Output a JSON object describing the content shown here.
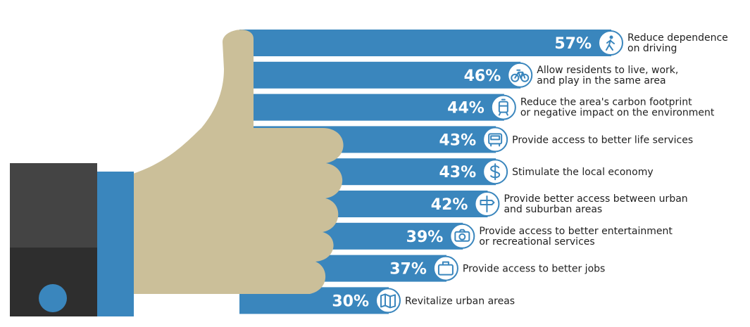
{
  "colors": {
    "bar": "#3a86bd",
    "hand": "#cbbf99",
    "sleeve_top": "#444444",
    "sleeve_bottom": "#2e2e2e",
    "cuff": "#3a86bd",
    "button": "#3a86bd",
    "icon_circle": "#ffffff",
    "icon_stroke": "#3a86bd",
    "label_text": "#1f1f1f"
  },
  "chart_data": {
    "type": "bar",
    "orientation": "horizontal",
    "value_suffix": "%",
    "categories": [
      [
        "Reduce dependence",
        "on driving"
      ],
      [
        "Allow residents to live, work,",
        "and play in the same area"
      ],
      [
        "Reduce the area's carbon footprint",
        "or negative impact on the environment"
      ],
      [
        "Provide access to better life services"
      ],
      [
        "Stimulate the local economy"
      ],
      [
        "Provide better access between urban",
        "and suburban areas"
      ],
      [
        "Provide access to better entertainment",
        "or recreational services"
      ],
      [
        "Provide access to better jobs"
      ],
      [
        "Revitalize urban areas"
      ]
    ],
    "values": [
      57,
      46,
      44,
      43,
      43,
      42,
      39,
      37,
      30
    ],
    "value_labels": [
      "57%",
      "46%",
      "44%",
      "43%",
      "43%",
      "42%",
      "39%",
      "37%",
      "30%"
    ],
    "icons": [
      "pedestrian-icon",
      "bicycle-icon",
      "tram-icon",
      "bus-icon",
      "dollar-icon",
      "road-sign-icon",
      "camera-icon",
      "briefcase-icon",
      "map-icon"
    ],
    "title": "",
    "xlabel": "",
    "ylabel": "",
    "legend": "none",
    "grid": false
  }
}
